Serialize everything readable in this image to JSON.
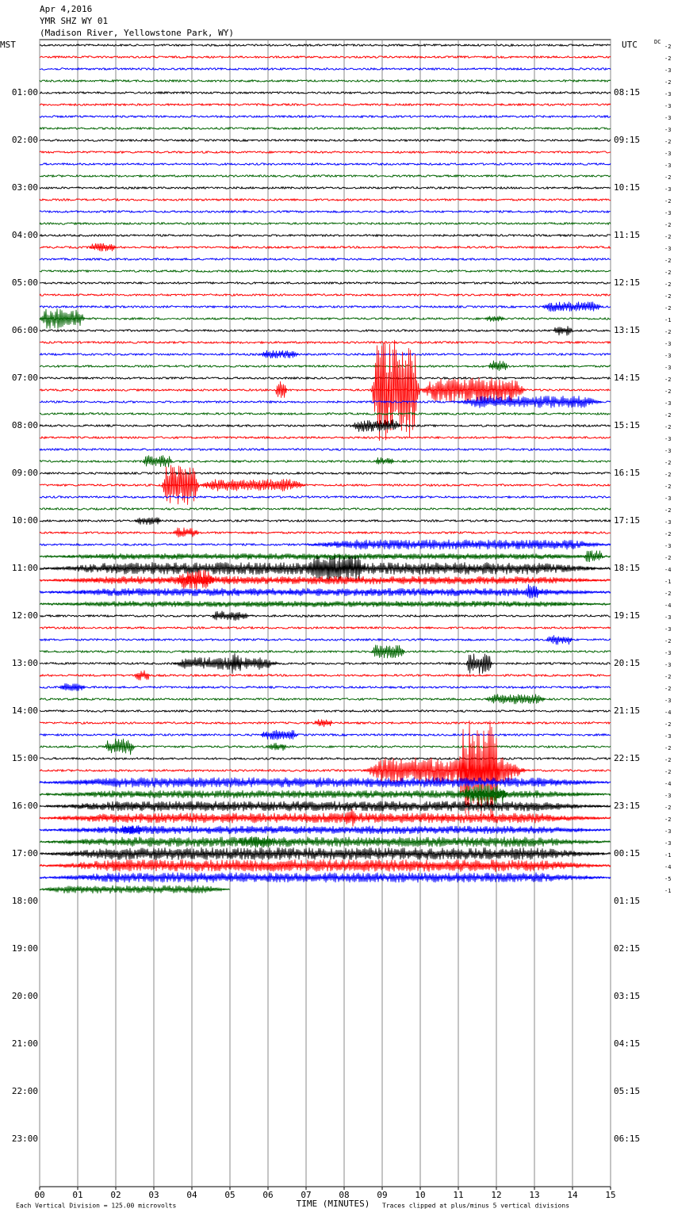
{
  "chart_data": {
    "type": "helicorder",
    "title_lines": [
      "Apr 4,2016",
      "YMR SHZ WY 01",
      "(Madison River, Yellowstone Park, WY)"
    ],
    "left_label": "MST",
    "right_label": "UTC",
    "dc_label": "DC",
    "hours_mst": [
      null,
      "01:00",
      "02:00",
      "03:00",
      "04:00",
      "05:00",
      "06:00",
      "07:00",
      "08:00",
      "09:00",
      "10:00",
      "11:00",
      "12:00",
      "13:00",
      "14:00",
      "15:00",
      "16:00",
      "17:00",
      "18:00",
      "19:00",
      "20:00",
      "21:00",
      "22:00",
      "23:00"
    ],
    "hours_utc": [
      null,
      "08:15",
      "09:15",
      "10:15",
      "11:15",
      "12:15",
      "13:15",
      "14:15",
      "15:15",
      "16:15",
      "17:15",
      "18:15",
      "19:15",
      "20:15",
      "21:15",
      "22:15",
      "23:15",
      "00:15",
      "01:15",
      "02:15",
      "03:15",
      "04:15",
      "05:15",
      "06:15"
    ],
    "xlabel": "TIME (MINUTES)",
    "footnote_left": "Each Vertical Division =  125.00 microvolts",
    "footnote_right": "Traces clipped at plus/minus 5 vertical divisions",
    "xlim": [
      0,
      15
    ],
    "xticks": [
      {
        "value": 0,
        "label": "00"
      },
      {
        "value": 1,
        "label": "01"
      },
      {
        "value": 2,
        "label": "02"
      },
      {
        "value": 3,
        "label": "03"
      },
      {
        "value": 4,
        "label": "04"
      },
      {
        "value": 5,
        "label": "05"
      },
      {
        "value": 6,
        "label": "06"
      },
      {
        "value": 7,
        "label": "07"
      },
      {
        "value": 8,
        "label": "08"
      },
      {
        "value": 9,
        "label": "09"
      },
      {
        "value": 10,
        "label": "10"
      },
      {
        "value": 11,
        "label": "11"
      },
      {
        "value": 12,
        "label": "12"
      },
      {
        "value": 13,
        "label": "13"
      },
      {
        "value": 14,
        "label": "14"
      },
      {
        "value": 15,
        "label": "15"
      }
    ],
    "clip": 5,
    "colors": [
      "#000000",
      "#ff0000",
      "#0000ff",
      "#006400"
    ],
    "traces": [
      {
        "dc": "-2"
      },
      {
        "dc": "-2"
      },
      {
        "dc": "-3"
      },
      {
        "dc": "-2"
      },
      {
        "dc": "-3"
      },
      {
        "dc": "-3"
      },
      {
        "dc": "-3"
      },
      {
        "dc": "-3"
      },
      {
        "dc": "-2"
      },
      {
        "dc": "-3"
      },
      {
        "dc": "-3"
      },
      {
        "dc": "-2"
      },
      {
        "dc": "-3"
      },
      {
        "dc": "-2"
      },
      {
        "dc": "-3"
      },
      {
        "dc": "-2"
      },
      {
        "dc": "-2"
      },
      {
        "dc": "-3",
        "events": [
          [
            1.3,
            2.0,
            0.4
          ]
        ]
      },
      {
        "dc": "-2"
      },
      {
        "dc": "-2"
      },
      {
        "dc": "-2"
      },
      {
        "dc": "-2"
      },
      {
        "dc": "-2",
        "events": [
          [
            13.2,
            14.8,
            0.5
          ]
        ]
      },
      {
        "dc": "-1",
        "events": [
          [
            0,
            1.2,
            1.0
          ],
          [
            11.7,
            12.2,
            0.3
          ]
        ]
      },
      {
        "dc": "-2",
        "events": [
          [
            13.5,
            14.0,
            0.5
          ]
        ]
      },
      {
        "dc": "-3"
      },
      {
        "dc": "-3",
        "events": [
          [
            5.8,
            6.8,
            0.4
          ]
        ]
      },
      {
        "dc": "-3",
        "events": [
          [
            11.8,
            12.3,
            0.6
          ]
        ]
      },
      {
        "dc": "-2"
      },
      {
        "dc": "-2",
        "events": [
          [
            8.7,
            10.0,
            5
          ],
          [
            10.0,
            12.8,
            1.2
          ],
          [
            6.2,
            6.5,
            1
          ]
        ]
      },
      {
        "dc": "-3",
        "events": [
          [
            11.0,
            14.8,
            0.6
          ]
        ]
      },
      {
        "dc": "-2"
      },
      {
        "dc": "-2",
        "events": [
          [
            8.2,
            9.5,
            0.6
          ]
        ]
      },
      {
        "dc": "-3"
      },
      {
        "dc": "-3"
      },
      {
        "dc": "-2",
        "events": [
          [
            2.7,
            3.5,
            0.6
          ],
          [
            8.8,
            9.3,
            0.4
          ]
        ]
      },
      {
        "dc": "-2"
      },
      {
        "dc": "-2",
        "events": [
          [
            3.2,
            4.2,
            2
          ],
          [
            4.2,
            7.0,
            0.6
          ]
        ]
      },
      {
        "dc": "-3"
      },
      {
        "dc": "-2"
      },
      {
        "dc": "-3",
        "events": [
          [
            2.5,
            3.2,
            0.4
          ]
        ]
      },
      {
        "dc": "-2",
        "events": [
          [
            3.5,
            4.2,
            0.5
          ]
        ]
      },
      {
        "dc": "-3",
        "events": [
          [
            7.0,
            15,
            0.5
          ]
        ]
      },
      {
        "dc": "-2",
        "events": [
          [
            0,
            15,
            0.3
          ],
          [
            14.3,
            14.8,
            0.6
          ]
        ]
      },
      {
        "dc": "-4",
        "events": [
          [
            0,
            15,
            0.6
          ],
          [
            7.0,
            8.6,
            1.3
          ]
        ]
      },
      {
        "dc": "-1",
        "events": [
          [
            0,
            15,
            0.4
          ],
          [
            3.6,
            4.6,
            1.0
          ]
        ]
      },
      {
        "dc": "-2",
        "events": [
          [
            0,
            15,
            0.4
          ],
          [
            12.8,
            13.1,
            1.0
          ]
        ]
      },
      {
        "dc": "-4",
        "events": [
          [
            0,
            15,
            0.3
          ]
        ]
      },
      {
        "dc": "-3",
        "events": [
          [
            4.5,
            5.5,
            0.5
          ]
        ]
      },
      {
        "dc": "-3"
      },
      {
        "dc": "-2",
        "events": [
          [
            13.3,
            14.0,
            0.5
          ]
        ]
      },
      {
        "dc": "-3",
        "events": [
          [
            8.7,
            9.6,
            0.7
          ]
        ]
      },
      {
        "dc": "-3",
        "events": [
          [
            3.5,
            6.3,
            0.6
          ],
          [
            11.2,
            11.9,
            1.0
          ],
          [
            5.0,
            5.3,
            1
          ]
        ]
      },
      {
        "dc": "-2",
        "events": [
          [
            2.5,
            2.9,
            0.5
          ]
        ]
      },
      {
        "dc": "-2",
        "events": [
          [
            0.5,
            1.2,
            0.4
          ]
        ]
      },
      {
        "dc": "-3",
        "events": [
          [
            11.7,
            13.3,
            0.5
          ]
        ]
      },
      {
        "dc": "-4"
      },
      {
        "dc": "-2",
        "events": [
          [
            7.2,
            7.7,
            0.4
          ]
        ]
      },
      {
        "dc": "-3",
        "events": [
          [
            5.8,
            6.8,
            0.5
          ]
        ]
      },
      {
        "dc": "-2",
        "events": [
          [
            1.7,
            2.5,
            0.8
          ],
          [
            6.0,
            6.5,
            0.4
          ]
        ]
      },
      {
        "dc": "-2"
      },
      {
        "dc": "-2",
        "events": [
          [
            8.5,
            12.8,
            1.3
          ],
          [
            11.0,
            12.1,
            5
          ]
        ]
      },
      {
        "dc": "-4",
        "events": [
          [
            0,
            15,
            0.5
          ]
        ]
      },
      {
        "dc": "-3",
        "events": [
          [
            0,
            15,
            0.4
          ],
          [
            11.1,
            12.3,
            1
          ]
        ]
      },
      {
        "dc": "-2",
        "events": [
          [
            0,
            15,
            0.5
          ]
        ]
      },
      {
        "dc": "-2",
        "events": [
          [
            0,
            15,
            0.5
          ],
          [
            8.0,
            8.3,
            1
          ]
        ]
      },
      {
        "dc": "-3",
        "events": [
          [
            0,
            15,
            0.4
          ],
          [
            2.1,
            2.7,
            0.5
          ]
        ]
      },
      {
        "dc": "-3",
        "events": [
          [
            0,
            15,
            0.5
          ],
          [
            5.2,
            6.2,
            0.6
          ]
        ]
      },
      {
        "dc": "-1",
        "events": [
          [
            0,
            15,
            0.6
          ]
        ]
      },
      {
        "dc": "-4",
        "events": [
          [
            0,
            15,
            0.6
          ]
        ]
      },
      {
        "dc": "-5",
        "events": [
          [
            0,
            15,
            0.5
          ]
        ]
      },
      {
        "dc": "-1",
        "end": 5,
        "events": [
          [
            0,
            5,
            0.4
          ]
        ]
      }
    ]
  }
}
